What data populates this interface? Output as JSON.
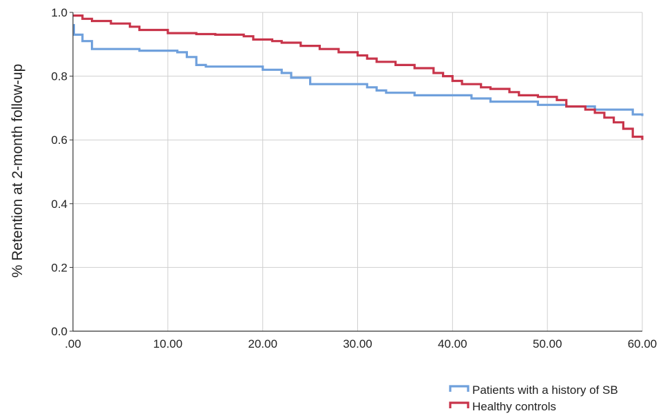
{
  "chart_data": {
    "type": "line",
    "title": "",
    "xlabel": "",
    "ylabel": "% Retention at 2-month follow-up",
    "xlim": [
      0,
      60
    ],
    "ylim": [
      0,
      1
    ],
    "x_ticks": [
      0,
      10,
      20,
      30,
      40,
      50,
      60
    ],
    "x_tick_labels": [
      ".00",
      "10.00",
      "20.00",
      "30.00",
      "40.00",
      "50.00",
      "60.00"
    ],
    "y_ticks": [
      0,
      0.2,
      0.4,
      0.6,
      0.8,
      1.0
    ],
    "y_tick_labels": [
      "0.0",
      "0.2",
      "0.4",
      "0.6",
      "0.8",
      "1.0"
    ],
    "grid": true,
    "step": true,
    "legend_position": "bottom-right",
    "series": [
      {
        "name": "Patients with a history of SB",
        "color": "#6FA0DC",
        "points": [
          [
            0,
            0.96
          ],
          [
            0.1,
            0.93
          ],
          [
            1,
            0.91
          ],
          [
            2,
            0.885
          ],
          [
            6,
            0.885
          ],
          [
            7,
            0.88
          ],
          [
            11,
            0.875
          ],
          [
            12,
            0.86
          ],
          [
            13,
            0.835
          ],
          [
            14,
            0.83
          ],
          [
            20,
            0.82
          ],
          [
            22,
            0.81
          ],
          [
            23,
            0.795
          ],
          [
            25,
            0.775
          ],
          [
            30,
            0.775
          ],
          [
            31,
            0.765
          ],
          [
            32,
            0.755
          ],
          [
            33,
            0.748
          ],
          [
            36,
            0.74
          ],
          [
            40,
            0.74
          ],
          [
            42,
            0.73
          ],
          [
            44,
            0.72
          ],
          [
            49,
            0.71
          ],
          [
            52,
            0.705
          ],
          [
            55,
            0.695
          ],
          [
            59,
            0.68
          ],
          [
            60,
            0.675
          ]
        ]
      },
      {
        "name": "Healthy controls",
        "color": "#C8344A",
        "points": [
          [
            0,
            0.99
          ],
          [
            1,
            0.98
          ],
          [
            2,
            0.973
          ],
          [
            4,
            0.965
          ],
          [
            6,
            0.955
          ],
          [
            7,
            0.945
          ],
          [
            10,
            0.935
          ],
          [
            13,
            0.932
          ],
          [
            15,
            0.93
          ],
          [
            18,
            0.925
          ],
          [
            19,
            0.915
          ],
          [
            21,
            0.91
          ],
          [
            22,
            0.905
          ],
          [
            24,
            0.895
          ],
          [
            26,
            0.885
          ],
          [
            28,
            0.875
          ],
          [
            30,
            0.865
          ],
          [
            31,
            0.855
          ],
          [
            32,
            0.845
          ],
          [
            34,
            0.835
          ],
          [
            36,
            0.825
          ],
          [
            38,
            0.81
          ],
          [
            39,
            0.8
          ],
          [
            40,
            0.785
          ],
          [
            41,
            0.775
          ],
          [
            43,
            0.765
          ],
          [
            44,
            0.76
          ],
          [
            46,
            0.75
          ],
          [
            47,
            0.74
          ],
          [
            49,
            0.735
          ],
          [
            51,
            0.725
          ],
          [
            52,
            0.705
          ],
          [
            54,
            0.695
          ],
          [
            55,
            0.685
          ],
          [
            56,
            0.67
          ],
          [
            57,
            0.655
          ],
          [
            58,
            0.635
          ],
          [
            59,
            0.61
          ],
          [
            60,
            0.6
          ]
        ]
      }
    ]
  }
}
